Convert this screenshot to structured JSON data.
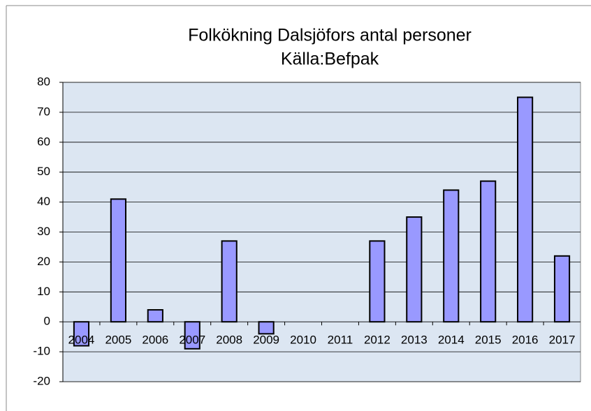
{
  "chart_data": {
    "type": "bar",
    "title": "Folkökning Dalsjöfors antal personer",
    "subtitle": "Källa:Befpak",
    "categories": [
      "2004",
      "2005",
      "2006",
      "2007",
      "2008",
      "2009",
      "2010",
      "2011",
      "2012",
      "2013",
      "2014",
      "2015",
      "2016",
      "2017"
    ],
    "values": [
      -8,
      41,
      4,
      -9,
      27,
      -4,
      0,
      0,
      27,
      35,
      44,
      47,
      75,
      22
    ],
    "color": "#9999ff",
    "ylim": [
      -20,
      80
    ],
    "yticks": [
      -20,
      -10,
      0,
      10,
      20,
      30,
      40,
      50,
      60,
      70,
      80
    ],
    "grid": true
  }
}
